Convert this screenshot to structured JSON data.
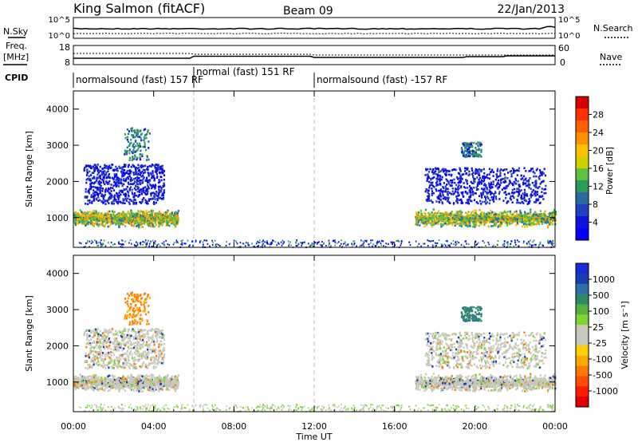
{
  "header": {
    "station": "King Salmon (fitACF)",
    "beam": "Beam 09",
    "date": "22/Jan/2013"
  },
  "panels": {
    "nsky": {
      "label": "N.Sky",
      "ticks": [
        "10^5",
        "10^0"
      ]
    },
    "nsearch": {
      "label": "N.Search",
      "ticks": [
        "10^5",
        "10^0"
      ]
    },
    "freq": {
      "label_line1": "Freq.",
      "label_line2": "[MHz]",
      "ticks": [
        "18",
        "8"
      ]
    },
    "nave": {
      "label": "Nave",
      "ticks": [
        "60",
        "0"
      ]
    },
    "cpid": {
      "label": "CPID"
    }
  },
  "cpid_segments": [
    {
      "label": "normalsound (fast) 157 RF",
      "start_hour": 0,
      "end_hour": 6
    },
    {
      "label": "normal (fast) 151 RF",
      "start_hour": 6,
      "end_hour": 12
    },
    {
      "label": "normalsound (fast) -157 RF",
      "start_hour": 12,
      "end_hour": 24
    }
  ],
  "colorbars": {
    "power": {
      "title": "Power [dB]",
      "ticks": [
        "28",
        "24",
        "20",
        "16",
        "12",
        "8",
        "4"
      ],
      "colors": [
        "#d80000",
        "#ff3000",
        "#ff6000",
        "#ff9000",
        "#ffc000",
        "#d0d000",
        "#60c040",
        "#2a9b5a",
        "#2a6aa0",
        "#2040c0",
        "#1010e0",
        "#0000ff"
      ]
    },
    "velocity": {
      "title": "Velocity [m s⁻¹]",
      "ticks": [
        "1000",
        "500",
        "100",
        "25",
        "-25",
        "-100",
        "-500",
        "-1000"
      ],
      "colors": [
        "#1a2ad8",
        "#1a3cb4",
        "#2d6fa8",
        "#2f8a66",
        "#56b13e",
        "#7ed52e",
        "#c8c8bc",
        "#c8c8bc",
        "#ffd000",
        "#ffa800",
        "#ff7800",
        "#ff4c00",
        "#ff1a00",
        "#e00000"
      ]
    }
  },
  "chart_data": {
    "type": "heatmap",
    "title": "King Salmon (fitACF) Beam 09 22/Jan/2013",
    "xlabel": "Time UT",
    "x_ticks": [
      "00:00",
      "04:00",
      "08:00",
      "12:00",
      "16:00",
      "20:00",
      "00:00"
    ],
    "xlim_hours": [
      0,
      24
    ],
    "ylabel": "Slant Range [km]",
    "y_ticks": [
      "4000",
      "3000",
      "2000",
      "1000"
    ],
    "ylim": [
      180,
      4500
    ],
    "dashed_lines_hours": [
      6,
      12
    ],
    "ionospheric_echo_regions": [
      {
        "start_hour": 0.0,
        "end_hour": 5.2,
        "range_km": [
          800,
          1400
        ],
        "level": "high"
      },
      {
        "start_hour": 0.5,
        "end_hour": 4.5,
        "range_km": [
          1400,
          2500
        ],
        "level": "low"
      },
      {
        "start_hour": 2.5,
        "end_hour": 3.8,
        "range_km": [
          2600,
          3500
        ],
        "level": "mid"
      },
      {
        "start_hour": 17.0,
        "end_hour": 24.0,
        "range_km": [
          800,
          1400
        ],
        "level": "high"
      },
      {
        "start_hour": 17.5,
        "end_hour": 23.5,
        "range_km": [
          1400,
          2400
        ],
        "level": "low"
      },
      {
        "start_hour": 19.3,
        "end_hour": 20.3,
        "range_km": [
          2700,
          3100
        ],
        "level": "mid"
      }
    ],
    "ground_scatter_range_km": [
      200,
      400
    ]
  }
}
